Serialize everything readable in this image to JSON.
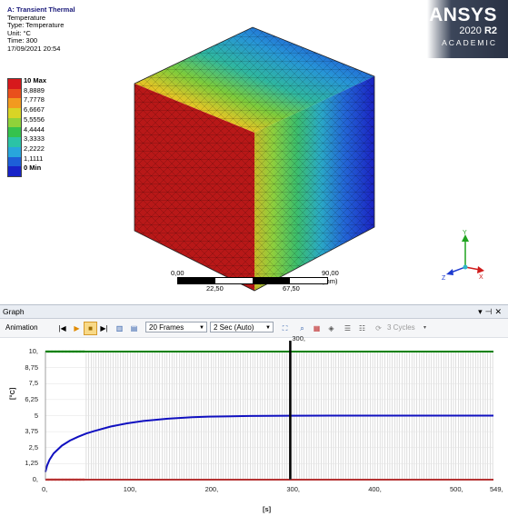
{
  "info": {
    "title": "A: Transient Thermal",
    "lines": [
      "Temperature",
      "Type: Temperature",
      "Unit: °C",
      "Time: 300",
      "17/09/2021 20:54"
    ]
  },
  "legend": {
    "labels": [
      "10 Max",
      "8,8889",
      "7,7778",
      "6,6667",
      "5,5556",
      "4,4444",
      "3,3333",
      "2,2222",
      "1,1111",
      "0 Min"
    ],
    "colors": [
      "#d7191c",
      "#e9501c",
      "#f29a1f",
      "#d8d425",
      "#8fd23a",
      "#35c24d",
      "#2bc3a6",
      "#28a6dc",
      "#1d5fd8",
      "#1823c8"
    ]
  },
  "brand": {
    "name": "ANSYS",
    "version": "2020",
    "release": "R2",
    "edition": "ACADEMIC"
  },
  "scale": {
    "start": "0,00",
    "end": "90,00 (mm)",
    "mid1": "22,50",
    "mid2": "67,50"
  },
  "axes_triad": {
    "x": "X",
    "y": "Y",
    "z": "Z"
  },
  "graph_panel": {
    "title": "Graph",
    "controls": [
      "▾",
      "⊣",
      "✕"
    ],
    "toolbar": {
      "animation_label": "Animation",
      "frames": "20 Frames",
      "duration": "2 Sec (Auto)",
      "cycles": "3 Cycles"
    }
  },
  "chart_data": {
    "type": "line",
    "xlabel": "[s]",
    "ylabel": "[°C]",
    "xlim": [
      0,
      549
    ],
    "ylim": [
      0,
      10
    ],
    "x_ticks": [
      "0,",
      "100,",
      "200,",
      "300,",
      "400,",
      "500,",
      "549,"
    ],
    "x_tick_values": [
      0,
      100,
      200,
      300,
      400,
      500,
      549
    ],
    "y_ticks": [
      "0,",
      "1,25",
      "2,5",
      "3,75",
      "5",
      "6,25",
      "7,5",
      "8,75",
      "10,"
    ],
    "y_tick_values": [
      0,
      1.25,
      2.5,
      3.75,
      5,
      6.25,
      7.5,
      8.75,
      10
    ],
    "marker_time": 300,
    "marker_label": "300,",
    "series": [
      {
        "color": "#008000",
        "x": [
          0,
          549
        ],
        "y": [
          10,
          10
        ]
      },
      {
        "color": "#1010c0",
        "x": [
          0,
          2,
          5,
          10,
          20,
          30,
          40,
          50,
          60,
          80,
          100,
          120,
          150,
          180,
          200,
          250,
          300,
          350,
          400,
          450,
          500,
          549
        ],
        "y": [
          0.6,
          1.1,
          1.55,
          2.05,
          2.65,
          3.05,
          3.35,
          3.6,
          3.8,
          4.15,
          4.4,
          4.58,
          4.76,
          4.87,
          4.92,
          4.97,
          4.99,
          5.0,
          5.0,
          5.0,
          5.0,
          5.0
        ]
      },
      {
        "color": "#d00000",
        "x": [
          0,
          549
        ],
        "y": [
          0,
          0
        ]
      }
    ]
  }
}
